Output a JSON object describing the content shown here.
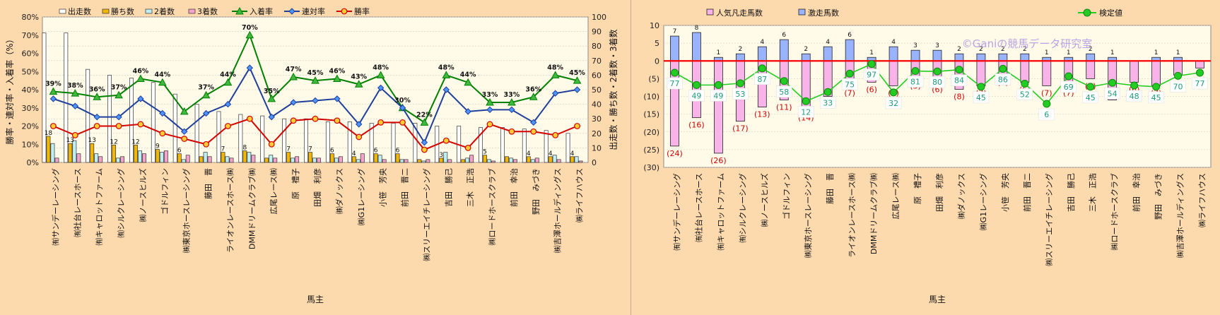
{
  "chart_data": [
    {
      "type": "bar",
      "xlabel": "馬主",
      "ylabel": "勝率・連対率・入着率（%）",
      "y2label": "出走数・勝ち数・2着数・3着数",
      "ylim": [
        0,
        80
      ],
      "y_ticks": [
        "0%",
        "10%",
        "20%",
        "30%",
        "40%",
        "50%",
        "60%",
        "70%",
        "80%"
      ],
      "y2lim": [
        0,
        100
      ],
      "y2_ticks": [
        "0",
        "10",
        "20",
        "30",
        "40",
        "50",
        "60",
        "70",
        "80",
        "90",
        "100"
      ],
      "legend_position": "top",
      "grid": true,
      "categories": [
        "㈲サンデーレーシング",
        "㈲社台レースホース",
        "㈲キャロットファーム",
        "㈲シルクレーシング",
        "㈱ノースヒルズ",
        "ゴドルフィン",
        "㈱東京ホースレーシング",
        "藤田　晋",
        "ライオンレースホース㈱",
        "DMMドリームクラブ㈱",
        "広尾レース㈱",
        "原　禮子",
        "田畑　利彦",
        "㈱ダノックス",
        "㈱G1レーシング",
        "小笹　芳央",
        "前田　晋二",
        "㈱スリーエイチレーシング",
        "吉田　勝己",
        "三木　正浩",
        "㈱ロードホースクラブ",
        "前田　幸治",
        "野田　みづき",
        "㈱吉澤ホールディングス",
        "㈱ライフハウス"
      ],
      "series": [
        {
          "name": "出走数",
          "kind": "bar",
          "axis": "y2",
          "color": "#ffffff",
          "values": [
            89,
            89,
            64,
            60,
            58,
            55,
            47,
            40,
            35,
            33,
            32,
            30,
            30,
            28,
            28,
            27,
            27,
            27,
            25,
            25,
            24,
            24,
            23,
            22,
            20
          ]
        },
        {
          "name": "勝ち数",
          "kind": "bar",
          "axis": "y2",
          "color": "#f2b705",
          "values": [
            18,
            13,
            13,
            12,
            12,
            9,
            6,
            4,
            7,
            8,
            3,
            7,
            7,
            6,
            4,
            6,
            6,
            2,
            3,
            2,
            5,
            4,
            4,
            4,
            4
          ]
        },
        {
          "name": "2着数",
          "kind": "bar",
          "axis": "y2",
          "color": "#bfeff5",
          "values": [
            13,
            15,
            6,
            3,
            8,
            7,
            2,
            7,
            4,
            7,
            5,
            3,
            3,
            3,
            2,
            5,
            2,
            1,
            7,
            3,
            2,
            3,
            2,
            5,
            4
          ]
        },
        {
          "name": "3着数",
          "kind": "bar",
          "axis": "y2",
          "color": "#f6a3cb",
          "values": [
            3,
            6,
            4,
            4,
            6,
            8,
            5,
            4,
            3,
            5,
            3,
            4,
            3,
            4,
            6,
            2,
            2,
            2,
            2,
            5,
            1,
            2,
            3,
            2,
            1
          ]
        },
        {
          "name": "入着率",
          "kind": "line",
          "axis": "y",
          "color": "#008000",
          "marker": "triangle",
          "values": [
            39,
            38,
            36,
            37,
            46,
            44,
            28,
            37,
            44,
            70,
            35,
            47,
            45,
            46,
            43,
            48,
            30,
            22,
            48,
            44,
            33,
            33,
            36,
            48,
            45
          ]
        },
        {
          "name": "連対率",
          "kind": "line",
          "axis": "y",
          "color": "#1f3f9b",
          "marker": "diamond",
          "values": [
            35,
            31,
            25,
            25,
            35,
            27,
            17,
            27,
            32,
            52,
            25,
            33,
            34,
            35,
            21,
            41,
            30,
            11,
            40,
            28,
            29,
            29,
            22,
            38,
            40
          ]
        },
        {
          "name": "勝率",
          "kind": "line",
          "axis": "y",
          "color": "#d40000",
          "marker": "circle",
          "values": [
            20,
            15,
            20,
            20,
            21,
            16,
            13,
            10,
            20,
            24,
            10,
            23,
            24,
            23,
            14,
            22,
            22,
            7,
            12,
            8,
            21,
            17,
            17,
            15,
            20
          ]
        }
      ],
      "top_labels": [
        "39%",
        "38%",
        "36%",
        "37%",
        "46%",
        "44%",
        "",
        "37%",
        "44%",
        "70%",
        "35%",
        "47%",
        "45%",
        "46%",
        "43%",
        "48%",
        "30%",
        "22%",
        "48%",
        "44%",
        "33%",
        "33%",
        "36%",
        "48%",
        "45%"
      ],
      "bar_labels": [
        "18",
        "13",
        "13",
        "12",
        "12",
        "9",
        "6",
        "",
        "7",
        "8",
        "",
        "7",
        "7",
        "6",
        "4",
        "6",
        "6",
        "",
        "3",
        "",
        "5",
        "",
        "4",
        "4",
        "4"
      ]
    },
    {
      "type": "bar",
      "xlabel": "馬主",
      "ylim": [
        -30,
        10
      ],
      "y_ticks": [
        "10",
        "5",
        "0",
        "(5)",
        "(10)",
        "(15)",
        "(20)",
        "(25)",
        "(30)"
      ],
      "y2lim": [
        0,
        100
      ],
      "legend_position": "top",
      "grid": true,
      "baseline": 0,
      "watermark": "©Ganiの競馬データ研究室",
      "categories": [
        "㈲サンデーレーシング",
        "㈲社台レースホース",
        "㈲キャロットファーム",
        "㈲シルクレーシング",
        "㈱ノースヒルズ",
        "ゴドルフィン",
        "㈱東京ホースレーシング",
        "藤田　晋",
        "ライオンレースホース㈱",
        "DMMドリームクラブ㈱",
        "広尾レース㈱",
        "原　禮子",
        "田畑　利彦",
        "㈱ダノックス",
        "㈱G1レーシング",
        "小笹　芳央",
        "前田　晋二",
        "㈱スリーエイチレーシング",
        "吉田　勝己",
        "三木　正浩",
        "㈱ロードホースクラブ",
        "前田　幸治",
        "野田　みづき",
        "㈱吉澤ホールディングス",
        "㈱ライフハウス"
      ],
      "series": [
        {
          "name": "人気凡走馬数",
          "kind": "bar",
          "color": "#f8b3e8",
          "values": [
            -24,
            -16,
            -26,
            -17,
            -13,
            -11,
            -14,
            -10,
            -7,
            -6,
            -7,
            -5,
            -6,
            -8,
            -7,
            -4,
            -6,
            -7,
            -7,
            -5,
            -11,
            -6,
            -7,
            -4,
            -2
          ]
        },
        {
          "name": "激走馬数",
          "kind": "bar",
          "color": "#99b3ff",
          "values": [
            7,
            8,
            1,
            2,
            4,
            6,
            2,
            4,
            6,
            1,
            4,
            3,
            3,
            2,
            2,
            2,
            2,
            1,
            1,
            2,
            1,
            0,
            1,
            1,
            0
          ]
        },
        {
          "name": "検定値",
          "kind": "line",
          "axis": "y2",
          "color": "#22cc22",
          "marker": "circle",
          "values": [
            77,
            49,
            49,
            53,
            87,
            58,
            12,
            33,
            75,
            97,
            32,
            81,
            80,
            84,
            45,
            86,
            52,
            6,
            69,
            45,
            54,
            48,
            45,
            70,
            77
          ]
        }
      ],
      "pos_labels": [
        "7",
        "8",
        "1",
        "2",
        "4",
        "6",
        "2",
        "4",
        "6",
        "1",
        "4",
        "3",
        "3",
        "2",
        "2",
        "2",
        "2",
        "1",
        "1",
        "2",
        "1",
        "",
        "1",
        "1",
        ""
      ],
      "neg_labels": [
        "(24)",
        "(16)",
        "(26)",
        "(17)",
        "(13)",
        "(11)",
        "(14)",
        "(10)",
        "(7)",
        "(6)",
        "(7)",
        "(5)",
        "(6)",
        "(8)",
        "(7)",
        "(4)",
        "(6)",
        "(7)",
        "(7)",
        "(5)",
        "",
        "(6)",
        "(7)",
        "",
        ""
      ]
    }
  ]
}
